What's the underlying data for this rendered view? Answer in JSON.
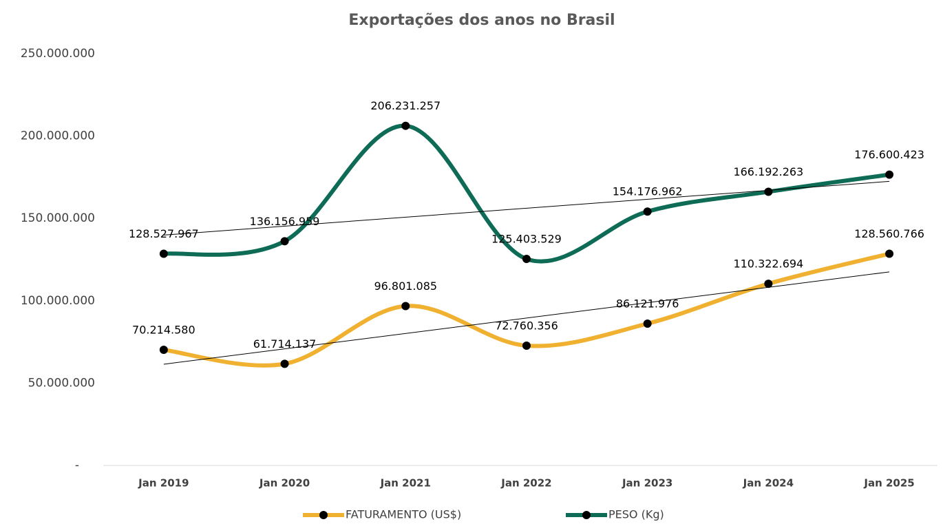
{
  "chart_data": {
    "type": "line",
    "title": "Exportações dos anos no Brasil",
    "categories": [
      "Jan 2019",
      "Jan 2020",
      "Jan 2021",
      "Jan 2022",
      "Jan 2023",
      "Jan 2024",
      "Jan 2025"
    ],
    "series": [
      {
        "name": "FATURAMENTO (US$)",
        "color": "#f0b030",
        "values": [
          70214580,
          61714137,
          96801085,
          72760356,
          86121976,
          110322694,
          128560766
        ],
        "value_labels": [
          "70.214.580",
          "61.714.137",
          "96.801.085",
          "72.760.356",
          "86.121.976",
          "110.322.694",
          "128.560.766"
        ]
      },
      {
        "name": "PESO (Kg)",
        "color": "#0e6b55",
        "values": [
          128527967,
          136156959,
          206231257,
          125403529,
          154176962,
          166192263,
          176600423
        ],
        "value_labels": [
          "128.527.967",
          "136.156.959",
          "206.231.257",
          "125.403.529",
          "154.176.962",
          "166.192.263",
          "176.600.423"
        ]
      }
    ],
    "ylim": [
      0,
      250000000
    ],
    "yticks": [
      {
        "value": 0,
        "label": "-"
      },
      {
        "value": 50000000,
        "label": "50.000.000"
      },
      {
        "value": 100000000,
        "label": "100.000.000"
      },
      {
        "value": 150000000,
        "label": "150.000.000"
      },
      {
        "value": 200000000,
        "label": "200.000.000"
      },
      {
        "value": 250000000,
        "label": "250.000.000"
      }
    ],
    "grid": false,
    "smooth": true,
    "trendline": true,
    "legend": "bottom"
  }
}
